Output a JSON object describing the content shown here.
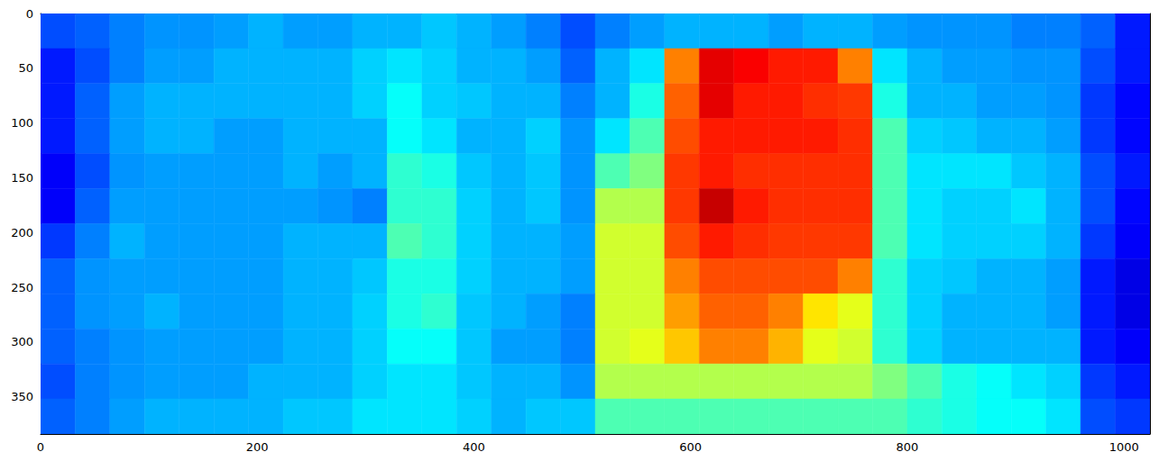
{
  "chart_data": {
    "type": "heatmap",
    "xlim": [
      0,
      1024
    ],
    "ylim": [
      384,
      0
    ],
    "xticks": [
      0,
      200,
      400,
      600,
      800,
      1000
    ],
    "yticks": [
      0,
      50,
      100,
      150,
      200,
      250,
      300,
      350
    ],
    "color_range": [
      0,
      1
    ],
    "cells": [
      [
        0.2,
        0.22,
        0.25,
        0.27,
        0.27,
        0.28,
        0.3,
        0.28,
        0.28,
        0.3,
        0.3,
        0.32,
        0.3,
        0.28,
        0.25,
        0.2,
        0.25,
        0.28,
        0.3,
        0.3,
        0.3,
        0.28,
        0.3,
        0.3,
        0.28,
        0.27,
        0.27,
        0.27,
        0.25,
        0.25,
        0.22,
        0.15
      ],
      [
        0.15,
        0.2,
        0.25,
        0.28,
        0.28,
        0.3,
        0.3,
        0.3,
        0.3,
        0.33,
        0.35,
        0.33,
        0.3,
        0.3,
        0.28,
        0.22,
        0.3,
        0.35,
        0.75,
        0.9,
        0.88,
        0.85,
        0.85,
        0.75,
        0.35,
        0.3,
        0.28,
        0.28,
        0.27,
        0.27,
        0.2,
        0.15
      ],
      [
        0.15,
        0.22,
        0.28,
        0.3,
        0.3,
        0.3,
        0.3,
        0.3,
        0.3,
        0.33,
        0.38,
        0.33,
        0.32,
        0.3,
        0.3,
        0.25,
        0.3,
        0.4,
        0.78,
        0.9,
        0.85,
        0.85,
        0.83,
        0.82,
        0.4,
        0.3,
        0.3,
        0.28,
        0.28,
        0.27,
        0.18,
        0.13
      ],
      [
        0.15,
        0.22,
        0.28,
        0.3,
        0.3,
        0.28,
        0.28,
        0.3,
        0.3,
        0.3,
        0.38,
        0.35,
        0.3,
        0.3,
        0.33,
        0.27,
        0.35,
        0.45,
        0.8,
        0.85,
        0.85,
        0.85,
        0.85,
        0.83,
        0.45,
        0.33,
        0.32,
        0.3,
        0.3,
        0.28,
        0.18,
        0.13
      ],
      [
        0.12,
        0.2,
        0.27,
        0.28,
        0.28,
        0.28,
        0.28,
        0.3,
        0.28,
        0.3,
        0.42,
        0.4,
        0.32,
        0.3,
        0.32,
        0.27,
        0.45,
        0.5,
        0.82,
        0.85,
        0.83,
        0.83,
        0.83,
        0.83,
        0.45,
        0.35,
        0.35,
        0.35,
        0.32,
        0.3,
        0.2,
        0.15
      ],
      [
        0.12,
        0.22,
        0.28,
        0.28,
        0.28,
        0.28,
        0.28,
        0.28,
        0.27,
        0.25,
        0.42,
        0.42,
        0.33,
        0.3,
        0.32,
        0.27,
        0.55,
        0.55,
        0.82,
        0.93,
        0.85,
        0.83,
        0.83,
        0.83,
        0.45,
        0.35,
        0.33,
        0.33,
        0.35,
        0.3,
        0.2,
        0.13
      ],
      [
        0.18,
        0.25,
        0.3,
        0.28,
        0.28,
        0.28,
        0.28,
        0.3,
        0.3,
        0.3,
        0.45,
        0.42,
        0.33,
        0.3,
        0.3,
        0.28,
        0.58,
        0.58,
        0.8,
        0.85,
        0.83,
        0.82,
        0.82,
        0.82,
        0.45,
        0.35,
        0.33,
        0.33,
        0.33,
        0.3,
        0.18,
        0.12
      ],
      [
        0.22,
        0.27,
        0.28,
        0.28,
        0.28,
        0.28,
        0.28,
        0.3,
        0.3,
        0.32,
        0.4,
        0.4,
        0.33,
        0.3,
        0.3,
        0.28,
        0.58,
        0.58,
        0.75,
        0.8,
        0.8,
        0.8,
        0.8,
        0.75,
        0.42,
        0.33,
        0.32,
        0.3,
        0.3,
        0.28,
        0.15,
        0.1
      ],
      [
        0.22,
        0.27,
        0.28,
        0.3,
        0.28,
        0.28,
        0.28,
        0.3,
        0.3,
        0.33,
        0.4,
        0.42,
        0.32,
        0.3,
        0.28,
        0.25,
        0.58,
        0.58,
        0.72,
        0.78,
        0.78,
        0.75,
        0.65,
        0.6,
        0.42,
        0.33,
        0.3,
        0.3,
        0.3,
        0.28,
        0.15,
        0.1
      ],
      [
        0.22,
        0.25,
        0.27,
        0.28,
        0.28,
        0.28,
        0.28,
        0.3,
        0.3,
        0.33,
        0.38,
        0.38,
        0.32,
        0.28,
        0.28,
        0.25,
        0.58,
        0.6,
        0.68,
        0.75,
        0.75,
        0.7,
        0.6,
        0.58,
        0.42,
        0.33,
        0.3,
        0.3,
        0.3,
        0.3,
        0.15,
        0.12
      ],
      [
        0.2,
        0.25,
        0.27,
        0.28,
        0.28,
        0.28,
        0.3,
        0.3,
        0.3,
        0.33,
        0.35,
        0.35,
        0.32,
        0.3,
        0.3,
        0.27,
        0.55,
        0.55,
        0.55,
        0.55,
        0.55,
        0.55,
        0.55,
        0.55,
        0.5,
        0.45,
        0.4,
        0.38,
        0.35,
        0.33,
        0.18,
        0.15
      ],
      [
        0.22,
        0.25,
        0.28,
        0.3,
        0.3,
        0.3,
        0.3,
        0.32,
        0.32,
        0.35,
        0.35,
        0.35,
        0.33,
        0.3,
        0.32,
        0.32,
        0.45,
        0.45,
        0.45,
        0.45,
        0.45,
        0.45,
        0.45,
        0.45,
        0.45,
        0.42,
        0.4,
        0.38,
        0.38,
        0.35,
        0.2,
        0.18
      ]
    ]
  }
}
